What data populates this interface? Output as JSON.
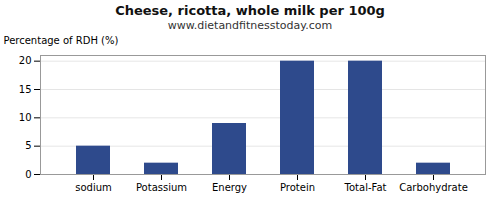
{
  "chart_data": {
    "type": "bar",
    "title": "Cheese, ricotta, whole milk per 100g",
    "subtitle": "www.dietandfitnesstoday.com",
    "ylabel": "Percentage of RDH (%)",
    "categories": [
      "sodium",
      "Potassium",
      "Energy",
      "Protein",
      "Total-Fat",
      "Carbohydrate"
    ],
    "values": [
      5,
      2,
      9,
      20,
      20,
      2
    ],
    "color": "#2e4a8c",
    "ylim": [
      0,
      21
    ],
    "yticks": [
      0,
      5,
      10,
      15,
      20
    ],
    "grid": true
  }
}
